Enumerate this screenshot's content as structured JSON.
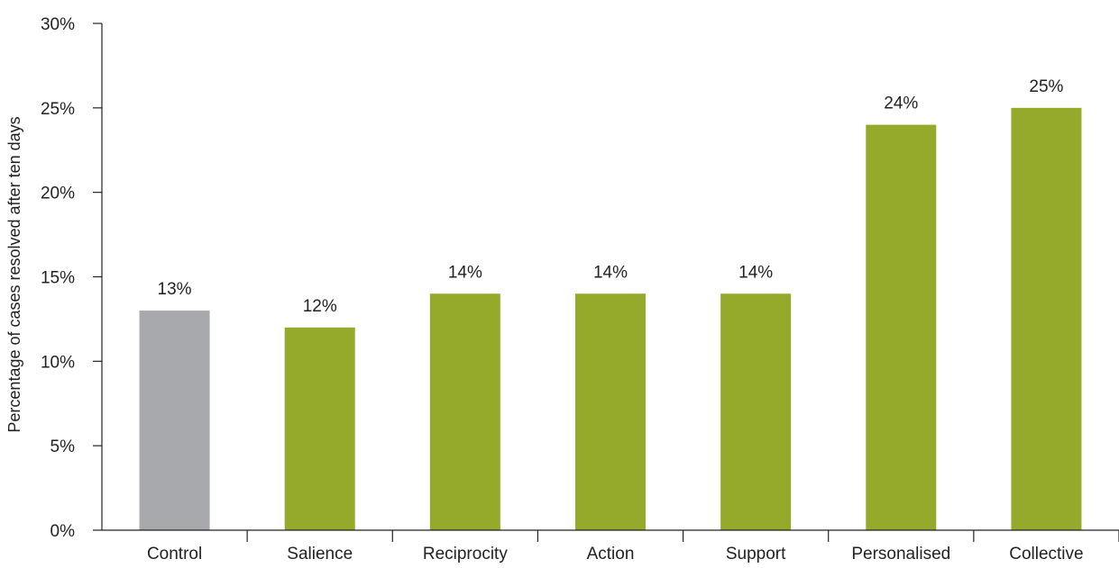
{
  "chart_data": {
    "type": "bar",
    "title": "",
    "xlabel": "",
    "ylabel": "Percentage of cases resolved after ten days",
    "ylim": [
      0,
      30
    ],
    "yticks": [
      0,
      5,
      10,
      15,
      20,
      25,
      30
    ],
    "ytick_labels": [
      "0%",
      "5%",
      "10%",
      "15%",
      "20%",
      "25%",
      "30%"
    ],
    "grid": false,
    "categories": [
      "Control",
      "Salience",
      "Reciprocity",
      "Action",
      "Support",
      "Personalised",
      "Collective"
    ],
    "values": [
      13,
      12,
      14,
      14,
      14,
      24,
      25
    ],
    "data_labels": [
      "13%",
      "12%",
      "14%",
      "14%",
      "14%",
      "24%",
      "25%"
    ],
    "colors": [
      "#a7a9ac",
      "#95a92b",
      "#95a92b",
      "#95a92b",
      "#95a92b",
      "#95a92b",
      "#95a92b"
    ]
  }
}
